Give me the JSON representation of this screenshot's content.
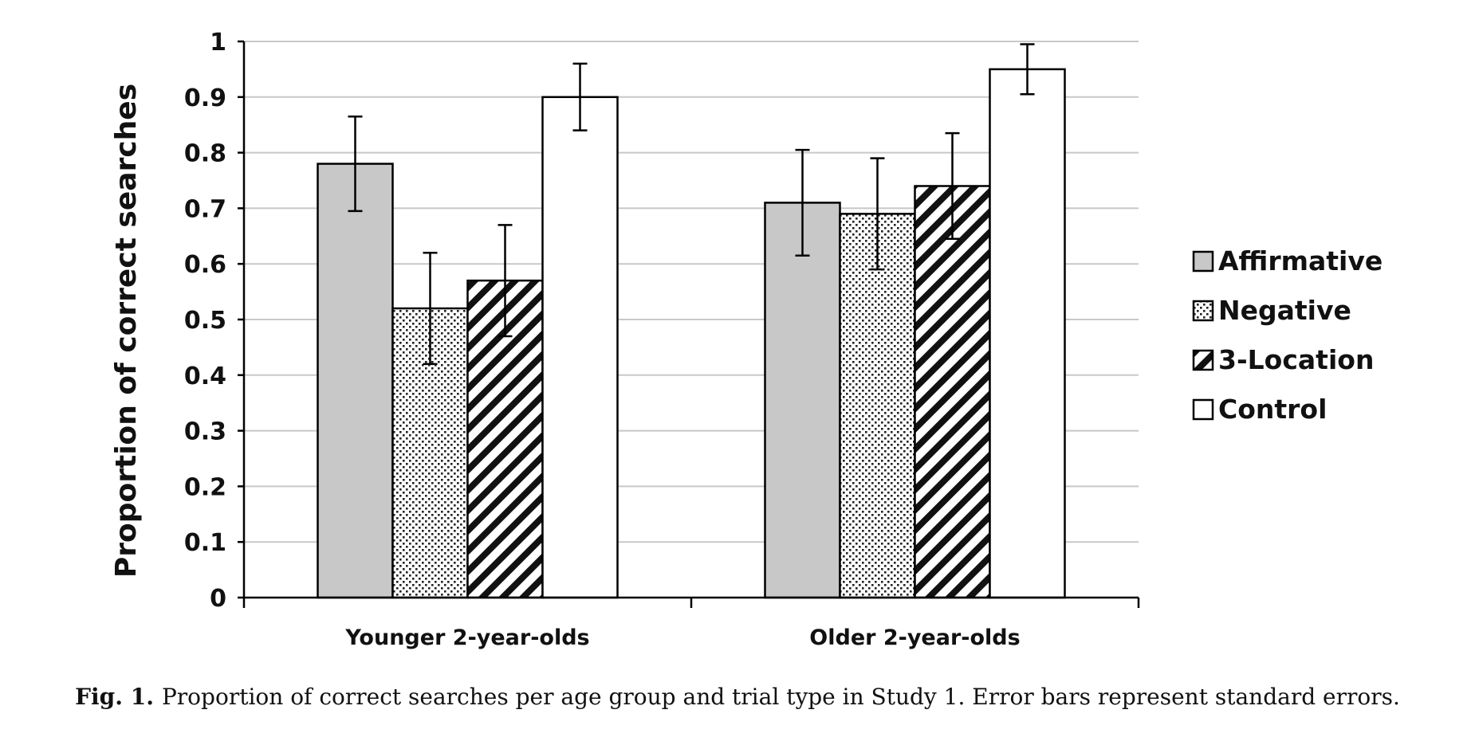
{
  "chart_data": {
    "type": "bar",
    "categories": [
      "Younger 2-year-olds",
      "Older 2-year-olds"
    ],
    "series": [
      {
        "name": "Affirmative",
        "values": [
          0.78,
          0.71
        ],
        "errors": [
          0.085,
          0.095
        ]
      },
      {
        "name": "Negative",
        "values": [
          0.52,
          0.69
        ],
        "errors": [
          0.1,
          0.1
        ]
      },
      {
        "name": "3-Location",
        "values": [
          0.57,
          0.74
        ],
        "errors": [
          0.1,
          0.095
        ]
      },
      {
        "name": "Control",
        "values": [
          0.9,
          0.95
        ],
        "errors": [
          0.06,
          0.045
        ]
      }
    ],
    "title": "",
    "xlabel": "",
    "ylabel": "Proportion of correct searches",
    "ylim": [
      0,
      1
    ],
    "yticks": [
      "0",
      "0.1",
      "0.2",
      "0.3",
      "0.4",
      "0.5",
      "0.6",
      "0.7",
      "0.8",
      "0.9",
      "1"
    ],
    "grid": true,
    "legend": "right",
    "error_bars": "standard errors"
  },
  "caption": {
    "label": "Fig. 1.",
    "text": "Proportion of correct searches per age group and trial type in Study 1. Error bars represent standard errors."
  }
}
